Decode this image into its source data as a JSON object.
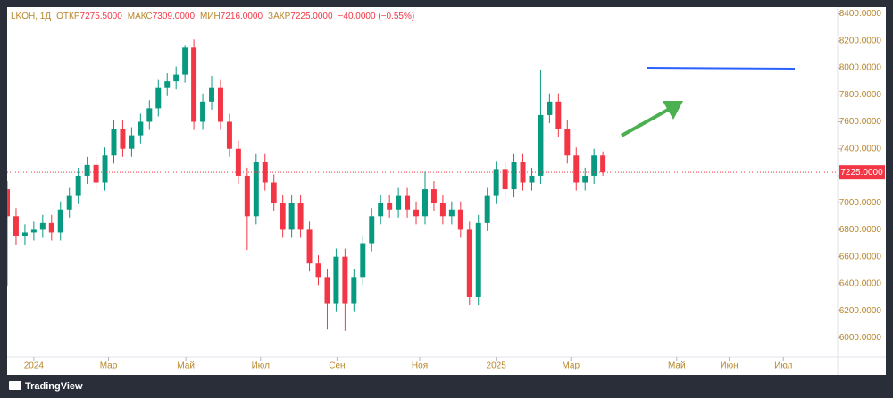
{
  "chart_data": {
    "type": "candlestick",
    "symbol": "LKOH, 1Д",
    "ohlc_legend": [
      {
        "label": "ОТКР",
        "value": "7275.5000"
      },
      {
        "label": "МАКС",
        "value": "7309.0000"
      },
      {
        "label": "МИН",
        "value": "7216.0000"
      },
      {
        "label": "ЗАКР",
        "value": "7225.0000"
      }
    ],
    "change": "−40.0000 (−0.55%)",
    "branding": "TradingView",
    "up_color": "#089981",
    "down_color": "#f23645",
    "x": [
      -3,
      -2,
      -1,
      0,
      1,
      2,
      3,
      4,
      5,
      6,
      7,
      8,
      9,
      10,
      11,
      12,
      13,
      14,
      15,
      16,
      17,
      18,
      19,
      20,
      21,
      22,
      23,
      24,
      25,
      26,
      27,
      28,
      29,
      30,
      31,
      32,
      33,
      34,
      35,
      36,
      37,
      38,
      39,
      40,
      41,
      42,
      43,
      44,
      45,
      46,
      47,
      48,
      49,
      50,
      51,
      52,
      53,
      54,
      55,
      56,
      57,
      58,
      59,
      60,
      61,
      62,
      63,
      64
    ],
    "open": [
      7100,
      6900,
      6750,
      6780,
      6800,
      6850,
      6780,
      6950,
      7050,
      7200,
      7280,
      7150,
      7350,
      7550,
      7400,
      7500,
      7600,
      7700,
      7850,
      7900,
      7950,
      8150,
      7600,
      7750,
      7850,
      7600,
      7400,
      7200,
      6900,
      7300,
      7150,
      7000,
      6800,
      7000,
      6800,
      6550,
      6450,
      6250,
      6600,
      6250,
      6450,
      6700,
      6900,
      7000,
      6950,
      7050,
      6950,
      6900,
      7100,
      7000,
      6900,
      6950,
      6800,
      6300,
      6850,
      7050,
      7250,
      7100,
      7300,
      7150,
      7200,
      7650,
      7750,
      7550,
      7350,
      7150,
      7200,
      7350
    ],
    "high": [
      7160,
      6960,
      6840,
      6860,
      6910,
      6910,
      7010,
      7110,
      7260,
      7340,
      7340,
      7410,
      7610,
      7610,
      7560,
      7660,
      7760,
      7910,
      7960,
      8010,
      8170,
      8210,
      7810,
      7940,
      7910,
      7660,
      7460,
      7260,
      7360,
      7360,
      7210,
      7060,
      7060,
      7060,
      6860,
      6610,
      6510,
      6660,
      6660,
      6510,
      6760,
      6960,
      7060,
      7060,
      7110,
      7110,
      7010,
      7230,
      7160,
      7060,
      7010,
      7010,
      6860,
      6910,
      7110,
      7310,
      7310,
      7360,
      7360,
      7260,
      7980,
      7810,
      7810,
      7610,
      7410,
      7260,
      7400,
      7380
    ],
    "low": [
      6380,
      6690,
      6690,
      6720,
      6740,
      6720,
      6720,
      6890,
      6990,
      7140,
      7090,
      7090,
      7290,
      7340,
      7340,
      7440,
      7540,
      7640,
      7790,
      7840,
      7890,
      7540,
      7540,
      7690,
      7540,
      7340,
      7140,
      6650,
      6840,
      7090,
      6940,
      6740,
      6740,
      6740,
      6490,
      6390,
      6060,
      6190,
      6050,
      6190,
      6390,
      6640,
      6840,
      6890,
      6890,
      6890,
      6840,
      6840,
      6940,
      6840,
      6840,
      6740,
      6240,
      6240,
      6790,
      6990,
      7040,
      7040,
      7090,
      7090,
      7140,
      7590,
      7490,
      7290,
      7090,
      7090,
      7140,
      7200
    ],
    "close": [
      6900,
      6750,
      6780,
      6800,
      6850,
      6780,
      6950,
      7050,
      7200,
      7280,
      7150,
      7350,
      7550,
      7400,
      7500,
      7600,
      7700,
      7850,
      7900,
      7950,
      8150,
      7600,
      7750,
      7850,
      7600,
      7400,
      7200,
      6900,
      7300,
      7150,
      7000,
      6800,
      7000,
      6800,
      6550,
      6450,
      6250,
      6600,
      6250,
      6450,
      6700,
      6900,
      7000,
      6950,
      7050,
      6950,
      6900,
      7100,
      7000,
      6900,
      6950,
      6800,
      6300,
      6850,
      7050,
      7250,
      7100,
      7300,
      7150,
      7200,
      7650,
      7750,
      7550,
      7350,
      7150,
      7200,
      7350,
      7225
    ],
    "last_price": {
      "value": 7225,
      "label": "7225.0000"
    },
    "xlim": [
      -3,
      90.4
    ],
    "ylim": [
      5870,
      8450
    ],
    "xticks": [
      {
        "value": 0,
        "label": "2024"
      },
      {
        "value": 8.4,
        "label": "Мар"
      },
      {
        "value": 17.1,
        "label": "Май"
      },
      {
        "value": 25.5,
        "label": "Июл"
      },
      {
        "value": 34.1,
        "label": "Сен"
      },
      {
        "value": 43.4,
        "label": "Ноя"
      },
      {
        "value": 52,
        "label": "2025"
      },
      {
        "value": 60.4,
        "label": "Мар"
      },
      {
        "value": 72.3,
        "label": "Май"
      },
      {
        "value": 78.2,
        "label": "Июн"
      },
      {
        "value": 84.3,
        "label": "Июл"
      }
    ],
    "yticks": [
      {
        "value": 6000,
        "label": "6000.0000"
      },
      {
        "value": 6200,
        "label": "6200.0000"
      },
      {
        "value": 6400,
        "label": "6400.0000"
      },
      {
        "value": 6600,
        "label": "6600.0000"
      },
      {
        "value": 6800,
        "label": "6800.0000"
      },
      {
        "value": 7000,
        "label": "7000.0000"
      },
      {
        "value": 7200,
        "label": "7200.0000"
      },
      {
        "value": 7400,
        "label": "7400.0000"
      },
      {
        "value": 7600,
        "label": "7600.0000"
      },
      {
        "value": 7800,
        "label": "7800.0000"
      },
      {
        "value": 8000,
        "label": "8000.0000"
      },
      {
        "value": 8200,
        "label": "8200.0000"
      },
      {
        "value": 8400,
        "label": "8400.0000"
      }
    ],
    "grid": false
  }
}
